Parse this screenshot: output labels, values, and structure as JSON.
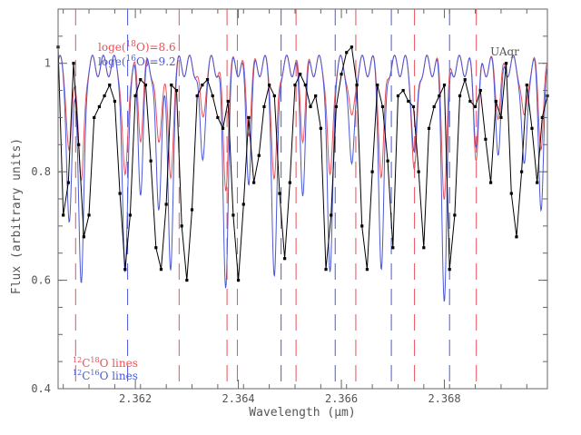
{
  "chart_data": {
    "type": "line",
    "xlabel": "Wavelength (μm)",
    "ylabel": "Flux (arbitrary units)",
    "xlim": [
      2.3605,
      2.37
    ],
    "ylim": [
      0.4,
      1.1
    ],
    "xticks": [
      2.362,
      2.364,
      2.366,
      2.368
    ],
    "xtick_labels": [
      "2.362",
      "2.364",
      "2.366",
      "2.368"
    ],
    "yticks": [
      0.4,
      0.6,
      0.8,
      1.0
    ],
    "ytick_labels": [
      "0.4",
      "0.6",
      "0.8",
      "1"
    ],
    "star_label": "UAqr",
    "annotations": {
      "o18_abundance": "loge(18O)=8.6",
      "o16_abundance": "loge(16O)=9.2",
      "c12o18_lines": "12C18O lines",
      "c12o16_lines": "12C16O lines"
    },
    "colors": {
      "observed": "#000000",
      "model_18o": "#e8505a",
      "model_16o": "#4a58d8",
      "axes": "#666666"
    },
    "line_markers": {
      "c12o18": [
        2.36084,
        2.36285,
        2.36378,
        2.36398,
        2.36512,
        2.36628,
        2.36742,
        2.36862
      ],
      "c12o16": [
        2.36185,
        2.36483,
        2.36588,
        2.36697,
        2.3681
      ]
    },
    "model_absorption_lines": [
      {
        "x": 2.36072,
        "depth": 0.3,
        "iso": "16"
      },
      {
        "x": 2.36095,
        "depth": 0.42,
        "iso": "16"
      },
      {
        "x": 2.3618,
        "depth": 0.4,
        "iso": "16"
      },
      {
        "x": 2.3621,
        "depth": 0.22,
        "iso": "16"
      },
      {
        "x": 2.36245,
        "depth": 0.28,
        "iso": "16"
      },
      {
        "x": 2.36268,
        "depth": 0.38,
        "iso": "16"
      },
      {
        "x": 2.3633,
        "depth": 0.18,
        "iso": "16"
      },
      {
        "x": 2.36375,
        "depth": 0.4,
        "iso": "16"
      },
      {
        "x": 2.3642,
        "depth": 0.2,
        "iso": "16"
      },
      {
        "x": 2.3647,
        "depth": 0.4,
        "iso": "16"
      },
      {
        "x": 2.36525,
        "depth": 0.22,
        "iso": "16"
      },
      {
        "x": 2.36578,
        "depth": 0.4,
        "iso": "16"
      },
      {
        "x": 2.3662,
        "depth": 0.2,
        "iso": "16"
      },
      {
        "x": 2.36678,
        "depth": 0.38,
        "iso": "16"
      },
      {
        "x": 2.36742,
        "depth": 0.28,
        "iso": "18"
      },
      {
        "x": 2.368,
        "depth": 0.42,
        "iso": "16"
      },
      {
        "x": 2.36862,
        "depth": 0.22,
        "iso": "18"
      },
      {
        "x": 2.36905,
        "depth": 0.15,
        "iso": "16"
      },
      {
        "x": 2.36955,
        "depth": 0.2,
        "iso": "16"
      },
      {
        "x": 2.36988,
        "depth": 0.25,
        "iso": "16"
      }
    ],
    "series": [
      {
        "name": "Observed",
        "x": [
          2.3605,
          2.3606,
          2.3607,
          2.3608,
          2.3609,
          2.361,
          2.3611,
          2.3612,
          2.3613,
          2.3614,
          2.3615,
          2.3616,
          2.3617,
          2.3618,
          2.3619,
          2.362,
          2.3621,
          2.3622,
          2.3623,
          2.3624,
          2.3625,
          2.3626,
          2.3627,
          2.3628,
          2.3629,
          2.363,
          2.3631,
          2.3632,
          2.3633,
          2.3634,
          2.3635,
          2.3636,
          2.3637,
          2.3638,
          2.3639,
          2.364,
          2.3641,
          2.3642,
          2.3643,
          2.3644,
          2.3645,
          2.3646,
          2.3647,
          2.3648,
          2.3649,
          2.365,
          2.3651,
          2.3652,
          2.3653,
          2.3654,
          2.3655,
          2.3656,
          2.3657,
          2.3658,
          2.3659,
          2.366,
          2.3661,
          2.3662,
          2.3663,
          2.3664,
          2.3665,
          2.3666,
          2.3667,
          2.3668,
          2.3669,
          2.367,
          2.3671,
          2.3672,
          2.3673,
          2.3674,
          2.3675,
          2.3676,
          2.3677,
          2.3678,
          2.3679,
          2.368,
          2.3681,
          2.3682,
          2.3683,
          2.3684,
          2.3685,
          2.3686,
          2.3687,
          2.3688,
          2.3689,
          2.369,
          2.3691,
          2.3692,
          2.3693,
          2.3694,
          2.3695,
          2.3696,
          2.3697,
          2.3698,
          2.3699,
          2.37
        ],
        "y": [
          1.03,
          0.72,
          0.78,
          1.0,
          0.85,
          0.68,
          0.72,
          0.9,
          0.92,
          0.94,
          0.96,
          0.93,
          0.76,
          0.62,
          0.72,
          0.94,
          0.97,
          0.96,
          0.82,
          0.66,
          0.62,
          0.74,
          0.96,
          0.95,
          0.7,
          0.6,
          0.73,
          0.94,
          0.96,
          0.97,
          0.94,
          0.9,
          0.88,
          0.93,
          0.72,
          0.6,
          0.74,
          0.9,
          0.78,
          0.83,
          0.92,
          0.96,
          0.94,
          0.76,
          0.64,
          0.78,
          0.96,
          0.98,
          0.96,
          0.92,
          0.94,
          0.88,
          0.62,
          0.72,
          0.92,
          0.98,
          1.02,
          1.03,
          0.96,
          0.7,
          0.62,
          0.8,
          0.96,
          0.92,
          0.82,
          0.66,
          0.94,
          0.95,
          0.93,
          0.92,
          0.8,
          0.66,
          0.88,
          0.92,
          0.94,
          0.96,
          0.62,
          0.72,
          0.94,
          0.97,
          0.93,
          0.92,
          0.95,
          0.86,
          0.78,
          0.93,
          0.9,
          1.0,
          0.76,
          0.68,
          0.8,
          0.96,
          0.88,
          0.78,
          0.9,
          0.94
        ]
      }
    ]
  }
}
